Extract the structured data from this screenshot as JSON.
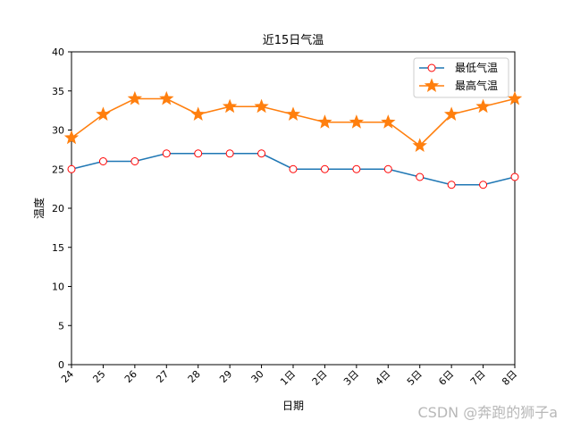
{
  "chart_data": {
    "type": "line",
    "title": "近15日气温",
    "xlabel": "日期",
    "ylabel": "温度",
    "categories": [
      "24",
      "25",
      "26",
      "27",
      "28",
      "29",
      "30",
      "1日",
      "2日",
      "3日",
      "4日",
      "5日",
      "6日",
      "7日",
      "8日"
    ],
    "ylim": [
      0,
      40
    ],
    "yticks": [
      0,
      5,
      10,
      15,
      20,
      25,
      30,
      35,
      40
    ],
    "legend_position": "top-right",
    "series": [
      {
        "name": "最低气温",
        "color": "#1f77b4",
        "marker": "circle",
        "marker_edge": "#ff0000",
        "marker_face": "#ffffff",
        "values": [
          25,
          26,
          26,
          27,
          27,
          27,
          27,
          25,
          25,
          25,
          25,
          24,
          23,
          23,
          24
        ]
      },
      {
        "name": "最高气温",
        "color": "#ff7f0e",
        "marker": "star",
        "marker_edge": "#ff7f0e",
        "marker_face": "#ff7f0e",
        "values": [
          29,
          32,
          34,
          34,
          32,
          33,
          33,
          32,
          31,
          31,
          31,
          28,
          32,
          33,
          34
        ]
      }
    ]
  },
  "watermark": "CSDN @奔跑的狮子a"
}
